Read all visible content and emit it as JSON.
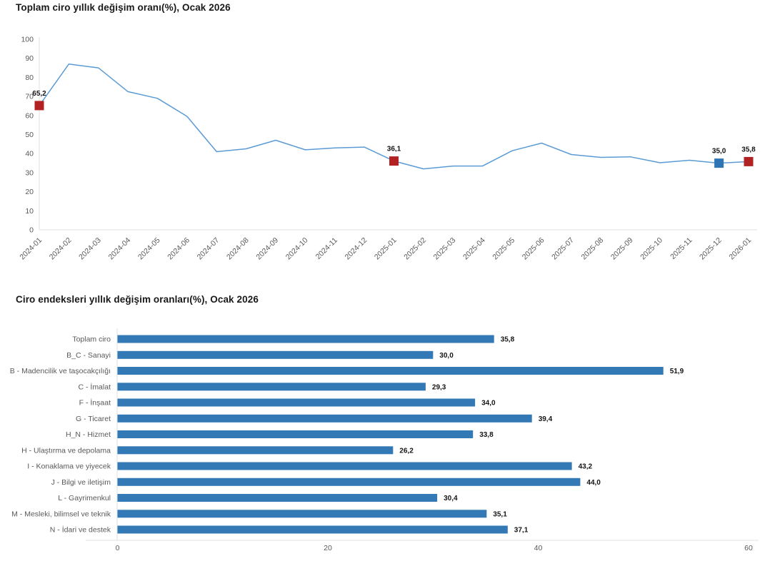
{
  "colors": {
    "line": "#5B9BD5",
    "marker_red": "#B22222",
    "marker_blue": "#2E75B6",
    "bar": "#3379B5",
    "axis_line": "#E0E0E0",
    "tick_text": "#595959",
    "title_text": "#191919",
    "value_label_text": "#141414"
  },
  "chart_data": [
    {
      "type": "line",
      "title": "Toplam ciro yıllık değişim oranı(%), Ocak 2026",
      "x": [
        "2024-01",
        "2024-02",
        "2024-03",
        "2024-04",
        "2024-05",
        "2024-06",
        "2024-07",
        "2024-08",
        "2024-09",
        "2024-10",
        "2024-11",
        "2024-12",
        "2025-01",
        "2025-02",
        "2025-03",
        "2025-04",
        "2025-05",
        "2025-06",
        "2025-07",
        "2025-08",
        "2025-09",
        "2025-10",
        "2025-11",
        "2025-12",
        "2026-01"
      ],
      "values": [
        65.2,
        87,
        85,
        72.5,
        69,
        59.5,
        41,
        42.5,
        47,
        42,
        43,
        43.4,
        36.1,
        32,
        33.5,
        33.5,
        41.5,
        45.5,
        39.5,
        38,
        38.3,
        35.2,
        36.5,
        35.0,
        35.8
      ],
      "ylim": [
        0,
        100
      ],
      "yticks": [
        0,
        10,
        20,
        30,
        40,
        50,
        60,
        70,
        80,
        90,
        100
      ],
      "grid": false,
      "legend": "none",
      "annotations": [
        {
          "x": "2024-01",
          "value": 65.2,
          "label": "65,2",
          "marker": "red"
        },
        {
          "x": "2025-01",
          "value": 36.1,
          "label": "36,1",
          "marker": "red"
        },
        {
          "x": "2025-12",
          "value": 35.0,
          "label": "35,0",
          "marker": "blue"
        },
        {
          "x": "2026-01",
          "value": 35.8,
          "label": "35,8",
          "marker": "red"
        }
      ]
    },
    {
      "type": "bar",
      "orientation": "horizontal",
      "title": "Ciro endeksleri yıllık değişim oranları(%), Ocak 2026",
      "categories": [
        "Toplam ciro",
        "B_C - Sanayi",
        "B - Madencilik ve taşocakçılığı",
        "C - İmalat",
        "F - İnşaat",
        "G - Ticaret",
        "H_N - Hizmet",
        "H - Ulaştırma ve depolama",
        "I - Konaklama ve yiyecek",
        "J - Bilgi ve iletişim",
        "L - Gayrimenkul",
        "M - Mesleki, bilimsel ve teknik",
        "N - İdari ve destek"
      ],
      "values": [
        35.8,
        30.0,
        51.9,
        29.3,
        34.0,
        39.4,
        33.8,
        26.2,
        43.2,
        44.0,
        30.4,
        35.1,
        37.1
      ],
      "value_labels": [
        "35,8",
        "30,0",
        "51,9",
        "29,3",
        "34,0",
        "39,4",
        "33,8",
        "26,2",
        "43,2",
        "44,0",
        "30,4",
        "35,1",
        "37,1"
      ],
      "xlim": [
        0,
        60
      ],
      "xticks": [
        0,
        20,
        40,
        60
      ],
      "grid": false,
      "legend": "none"
    }
  ]
}
